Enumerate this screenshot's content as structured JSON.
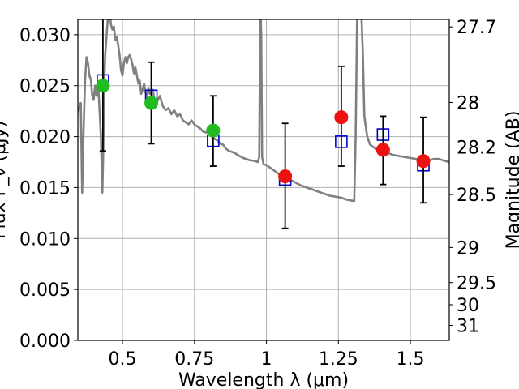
{
  "chart_data": {
    "type": "scatter",
    "xlabel": "Wavelength  λ (μm)",
    "ylabel": "Flux F_ν (μJy)",
    "ylabel_right": "Magnitude (AB)",
    "xlim": [
      0.345,
      1.635
    ],
    "ylim": [
      0.0,
      0.0315
    ],
    "grid": true,
    "x_ticks": [
      {
        "value": 0.5,
        "label": "0.5"
      },
      {
        "value": 0.75,
        "label": "0.75"
      },
      {
        "value": 1.0,
        "label": "1"
      },
      {
        "value": 1.25,
        "label": "1.25"
      },
      {
        "value": 1.5,
        "label": "1.5"
      }
    ],
    "y_ticks": [
      {
        "value": 0.0,
        "label": "0.000"
      },
      {
        "value": 0.005,
        "label": "0.005"
      },
      {
        "value": 0.01,
        "label": "0.010"
      },
      {
        "value": 0.015,
        "label": "0.015"
      },
      {
        "value": 0.02,
        "label": "0.020"
      },
      {
        "value": 0.025,
        "label": "0.025"
      },
      {
        "value": 0.03,
        "label": "0.030"
      }
    ],
    "right_ticks": [
      {
        "flux": 0.03077,
        "label": "27.7"
      },
      {
        "flux": 0.02335,
        "label": "28"
      },
      {
        "flux": 0.01897,
        "label": "28.2"
      },
      {
        "flux": 0.01431,
        "label": "28.5"
      },
      {
        "flux": 0.00912,
        "label": "29"
      },
      {
        "flux": 0.00567,
        "label": "29.5"
      },
      {
        "flux": 0.0035,
        "label": "30"
      },
      {
        "flux": 0.00147,
        "label": "31"
      }
    ],
    "series": [
      {
        "kind": "line",
        "color": "#808080",
        "points": [
          [
            0.345,
            0.0224
          ],
          [
            0.355,
            0.0233
          ],
          [
            0.36,
            0.0145
          ],
          [
            0.365,
            0.0208
          ],
          [
            0.37,
            0.0256
          ],
          [
            0.375,
            0.0278
          ],
          [
            0.38,
            0.0273
          ],
          [
            0.385,
            0.026
          ],
          [
            0.39,
            0.0256
          ],
          [
            0.395,
            0.024
          ],
          [
            0.4,
            0.0236
          ],
          [
            0.405,
            0.025
          ],
          [
            0.41,
            0.024
          ],
          [
            0.415,
            0.0254
          ],
          [
            0.42,
            0.0228
          ],
          [
            0.425,
            0.02
          ],
          [
            0.43,
            0.0145
          ],
          [
            0.433,
            0.018
          ],
          [
            0.437,
            0.0256
          ],
          [
            0.44,
            0.028
          ],
          [
            0.445,
            0.03
          ],
          [
            0.45,
            0.032
          ],
          [
            0.455,
            0.0325
          ],
          [
            0.46,
            0.031
          ],
          [
            0.465,
            0.0305
          ],
          [
            0.47,
            0.0308
          ],
          [
            0.475,
            0.0295
          ],
          [
            0.48,
            0.0298
          ],
          [
            0.485,
            0.029
          ],
          [
            0.49,
            0.028
          ],
          [
            0.495,
            0.0265
          ],
          [
            0.5,
            0.026
          ],
          [
            0.505,
            0.0272
          ],
          [
            0.51,
            0.0278
          ],
          [
            0.515,
            0.0272
          ],
          [
            0.52,
            0.0278
          ],
          [
            0.525,
            0.028
          ],
          [
            0.53,
            0.0276
          ],
          [
            0.535,
            0.027
          ],
          [
            0.54,
            0.0262
          ],
          [
            0.545,
            0.0268
          ],
          [
            0.55,
            0.026
          ],
          [
            0.555,
            0.0252
          ],
          [
            0.56,
            0.0255
          ],
          [
            0.565,
            0.0242
          ],
          [
            0.57,
            0.0246
          ],
          [
            0.575,
            0.0252
          ],
          [
            0.58,
            0.0244
          ],
          [
            0.585,
            0.0238
          ],
          [
            0.59,
            0.0248
          ],
          [
            0.595,
            0.0242
          ],
          [
            0.6,
            0.0244
          ],
          [
            0.605,
            0.0246
          ],
          [
            0.61,
            0.0238
          ],
          [
            0.62,
            0.0234
          ],
          [
            0.63,
            0.024
          ],
          [
            0.64,
            0.023
          ],
          [
            0.65,
            0.0226
          ],
          [
            0.66,
            0.0228
          ],
          [
            0.67,
            0.0222
          ],
          [
            0.68,
            0.0226
          ],
          [
            0.69,
            0.022
          ],
          [
            0.7,
            0.0222
          ],
          [
            0.71,
            0.0216
          ],
          [
            0.72,
            0.0214
          ],
          [
            0.73,
            0.0212
          ],
          [
            0.74,
            0.0216
          ],
          [
            0.75,
            0.0212
          ],
          [
            0.76,
            0.021
          ],
          [
            0.77,
            0.0208
          ],
          [
            0.78,
            0.0205
          ],
          [
            0.79,
            0.0204
          ],
          [
            0.8,
            0.0206
          ],
          [
            0.81,
            0.02
          ],
          [
            0.82,
            0.0198
          ],
          [
            0.83,
            0.0196
          ],
          [
            0.84,
            0.0193
          ],
          [
            0.85,
            0.0192
          ],
          [
            0.86,
            0.0188
          ],
          [
            0.87,
            0.0186
          ],
          [
            0.88,
            0.0185
          ],
          [
            0.89,
            0.0184
          ],
          [
            0.9,
            0.0182
          ],
          [
            0.92,
            0.0179
          ],
          [
            0.94,
            0.0177
          ],
          [
            0.96,
            0.0176
          ],
          [
            0.97,
            0.0175
          ],
          [
            0.975,
            0.018
          ],
          [
            0.978,
            0.03
          ],
          [
            0.98,
            0.032
          ],
          [
            0.982,
            0.03
          ],
          [
            0.985,
            0.018
          ],
          [
            0.99,
            0.0173
          ],
          [
            1.0,
            0.0172
          ],
          [
            1.02,
            0.0168
          ],
          [
            1.04,
            0.0164
          ],
          [
            1.06,
            0.016
          ],
          [
            1.08,
            0.0158
          ],
          [
            1.1,
            0.0155
          ],
          [
            1.12,
            0.0152
          ],
          [
            1.14,
            0.015
          ],
          [
            1.16,
            0.0148
          ],
          [
            1.18,
            0.0146
          ],
          [
            1.2,
            0.0144
          ],
          [
            1.22,
            0.0142
          ],
          [
            1.24,
            0.0141
          ],
          [
            1.26,
            0.014
          ],
          [
            1.28,
            0.0138
          ],
          [
            1.3,
            0.0137
          ],
          [
            1.305,
            0.0137
          ],
          [
            1.31,
            0.02
          ],
          [
            1.315,
            0.032
          ],
          [
            1.33,
            0.032
          ],
          [
            1.335,
            0.028
          ],
          [
            1.34,
            0.022
          ],
          [
            1.35,
            0.02
          ],
          [
            1.36,
            0.0192
          ],
          [
            1.38,
            0.0188
          ],
          [
            1.4,
            0.0186
          ],
          [
            1.42,
            0.0184
          ],
          [
            1.44,
            0.0182
          ],
          [
            1.46,
            0.0181
          ],
          [
            1.48,
            0.018
          ],
          [
            1.5,
            0.0179
          ],
          [
            1.52,
            0.0178
          ],
          [
            1.54,
            0.0177
          ],
          [
            1.56,
            0.0176
          ],
          [
            1.58,
            0.0178
          ],
          [
            1.6,
            0.0178
          ],
          [
            1.62,
            0.0176
          ],
          [
            1.635,
            0.0175
          ]
        ]
      },
      {
        "kind": "hollow-square",
        "color": "#0000cc",
        "points": [
          [
            0.432,
            0.0255
          ],
          [
            0.6,
            0.024
          ],
          [
            0.815,
            0.0196
          ],
          [
            1.065,
            0.0158
          ],
          [
            1.26,
            0.0195
          ],
          [
            1.405,
            0.0202
          ],
          [
            1.545,
            0.0172
          ]
        ]
      },
      {
        "kind": "errorbar",
        "color": "#000000",
        "points": [
          {
            "x": 0.432,
            "low": 0.0186,
            "high": 0.0316
          },
          {
            "x": 0.6,
            "low": 0.0193,
            "high": 0.0273
          },
          {
            "x": 0.815,
            "low": 0.0171,
            "high": 0.024
          },
          {
            "x": 1.065,
            "low": 0.011,
            "high": 0.0213
          },
          {
            "x": 1.26,
            "low": 0.0171,
            "high": 0.0269
          },
          {
            "x": 1.405,
            "low": 0.0153,
            "high": 0.022
          },
          {
            "x": 1.545,
            "low": 0.0135,
            "high": 0.0219
          }
        ]
      },
      {
        "kind": "filled-circle",
        "color": "#22bb22",
        "points": [
          [
            0.432,
            0.025
          ],
          [
            0.6,
            0.0233
          ],
          [
            0.815,
            0.0206
          ]
        ]
      },
      {
        "kind": "filled-circle",
        "color": "#ee1111",
        "points": [
          [
            1.065,
            0.0161
          ],
          [
            1.26,
            0.0219
          ],
          [
            1.405,
            0.0187
          ],
          [
            1.545,
            0.0176
          ]
        ]
      }
    ]
  }
}
